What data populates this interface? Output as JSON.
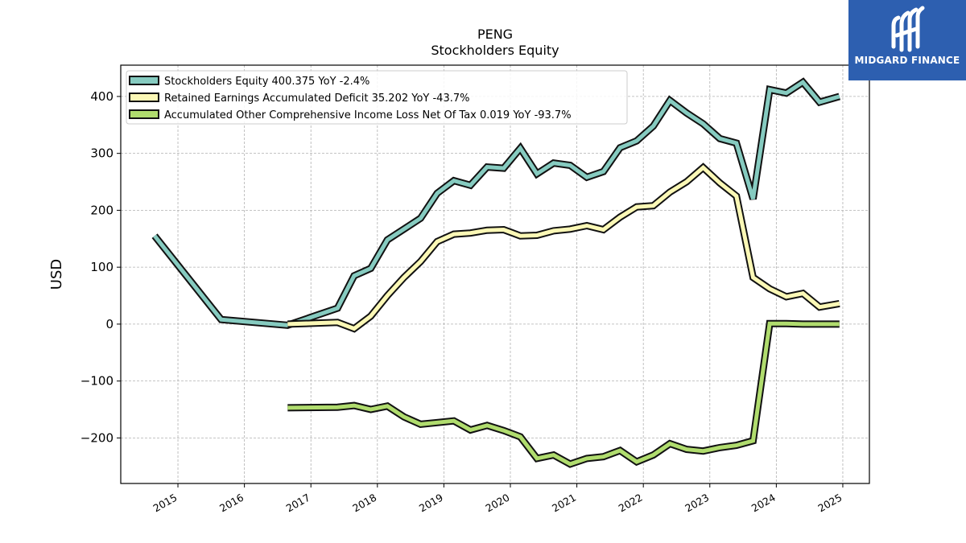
{
  "chart_data": {
    "type": "line",
    "title": "PENG",
    "subtitle": "Stockholders  Equity",
    "ylabel": "USD",
    "ylim": [
      -280,
      455
    ],
    "xlim": [
      2014.14,
      2025.4
    ],
    "yticks": [
      400,
      300,
      200,
      100,
      0,
      -100,
      -200
    ],
    "ytick_labels": [
      "400",
      "300",
      "200",
      "100",
      "0",
      "−100",
      "−200"
    ],
    "xticks": [
      2015,
      2016,
      2017,
      2018,
      2019,
      2020,
      2021,
      2022,
      2023,
      2024,
      2025
    ],
    "xtick_labels": [
      "2015",
      "2016",
      "2017",
      "2018",
      "2019",
      "2020",
      "2021",
      "2022",
      "2023",
      "2024",
      "2025"
    ],
    "grid": true,
    "legend_position": "top-left",
    "series": [
      {
        "name": "Stockholders Equity  400.375 YoY -2.4%",
        "color": "#86cbc0",
        "points": [
          [
            2014.65,
            155
          ],
          [
            2015.65,
            8
          ],
          [
            2016.65,
            -2
          ],
          [
            2016.9,
            8
          ],
          [
            2017.4,
            28
          ],
          [
            2017.65,
            85
          ],
          [
            2017.9,
            98
          ],
          [
            2018.15,
            148
          ],
          [
            2018.65,
            186
          ],
          [
            2018.9,
            230
          ],
          [
            2019.15,
            252
          ],
          [
            2019.4,
            244
          ],
          [
            2019.65,
            276
          ],
          [
            2019.9,
            274
          ],
          [
            2020.15,
            309
          ],
          [
            2020.4,
            264
          ],
          [
            2020.65,
            283
          ],
          [
            2020.9,
            279
          ],
          [
            2021.15,
            258
          ],
          [
            2021.4,
            268
          ],
          [
            2021.65,
            310
          ],
          [
            2021.9,
            322
          ],
          [
            2022.15,
            348
          ],
          [
            2022.4,
            393
          ],
          [
            2022.65,
            371
          ],
          [
            2022.9,
            352
          ],
          [
            2023.15,
            326
          ],
          [
            2023.4,
            318
          ],
          [
            2023.65,
            220
          ],
          [
            2023.9,
            412
          ],
          [
            2024.15,
            406
          ],
          [
            2024.4,
            425
          ],
          [
            2024.65,
            390
          ],
          [
            2024.95,
            400
          ]
        ]
      },
      {
        "name": "Retained Earnings Accumulated Deficit  35.202 YoY -43.7%",
        "color": "#fbf8b6",
        "points": [
          [
            2016.65,
            0
          ],
          [
            2017.4,
            3
          ],
          [
            2017.65,
            -8
          ],
          [
            2017.9,
            14
          ],
          [
            2018.15,
            50
          ],
          [
            2018.4,
            82
          ],
          [
            2018.65,
            110
          ],
          [
            2018.9,
            145
          ],
          [
            2019.15,
            158
          ],
          [
            2019.4,
            160
          ],
          [
            2019.65,
            165
          ],
          [
            2019.9,
            166
          ],
          [
            2020.15,
            155
          ],
          [
            2020.4,
            156
          ],
          [
            2020.65,
            164
          ],
          [
            2020.9,
            167
          ],
          [
            2021.15,
            173
          ],
          [
            2021.4,
            166
          ],
          [
            2021.65,
            188
          ],
          [
            2021.9,
            206
          ],
          [
            2022.15,
            208
          ],
          [
            2022.4,
            232
          ],
          [
            2022.65,
            250
          ],
          [
            2022.9,
            275
          ],
          [
            2023.15,
            248
          ],
          [
            2023.4,
            225
          ],
          [
            2023.65,
            82
          ],
          [
            2023.9,
            62
          ],
          [
            2024.15,
            48
          ],
          [
            2024.4,
            54
          ],
          [
            2024.65,
            30
          ],
          [
            2024.95,
            36
          ]
        ]
      },
      {
        "name": "Accumulated Other Comprehensive Income Loss Net Of Tax  0.019 YoY -93.7%",
        "color": "#b0dc6e",
        "points": [
          [
            2016.65,
            -147
          ],
          [
            2017.4,
            -146
          ],
          [
            2017.65,
            -143
          ],
          [
            2017.9,
            -150
          ],
          [
            2018.15,
            -144
          ],
          [
            2018.4,
            -163
          ],
          [
            2018.65,
            -176
          ],
          [
            2018.9,
            -173
          ],
          [
            2019.15,
            -170
          ],
          [
            2019.4,
            -186
          ],
          [
            2019.65,
            -178
          ],
          [
            2019.9,
            -187
          ],
          [
            2020.15,
            -198
          ],
          [
            2020.4,
            -236
          ],
          [
            2020.65,
            -230
          ],
          [
            2020.9,
            -246
          ],
          [
            2021.15,
            -236
          ],
          [
            2021.4,
            -233
          ],
          [
            2021.65,
            -222
          ],
          [
            2021.9,
            -242
          ],
          [
            2022.15,
            -230
          ],
          [
            2022.4,
            -210
          ],
          [
            2022.65,
            -220
          ],
          [
            2022.9,
            -223
          ],
          [
            2023.15,
            -217
          ],
          [
            2023.4,
            -213
          ],
          [
            2023.65,
            -205
          ],
          [
            2023.9,
            1
          ],
          [
            2024.15,
            1
          ],
          [
            2024.4,
            0
          ],
          [
            2024.65,
            0
          ],
          [
            2024.95,
            0
          ]
        ]
      }
    ]
  },
  "logo": {
    "text": "MIDGARD FINANCE",
    "color": "#2d5fb0"
  }
}
